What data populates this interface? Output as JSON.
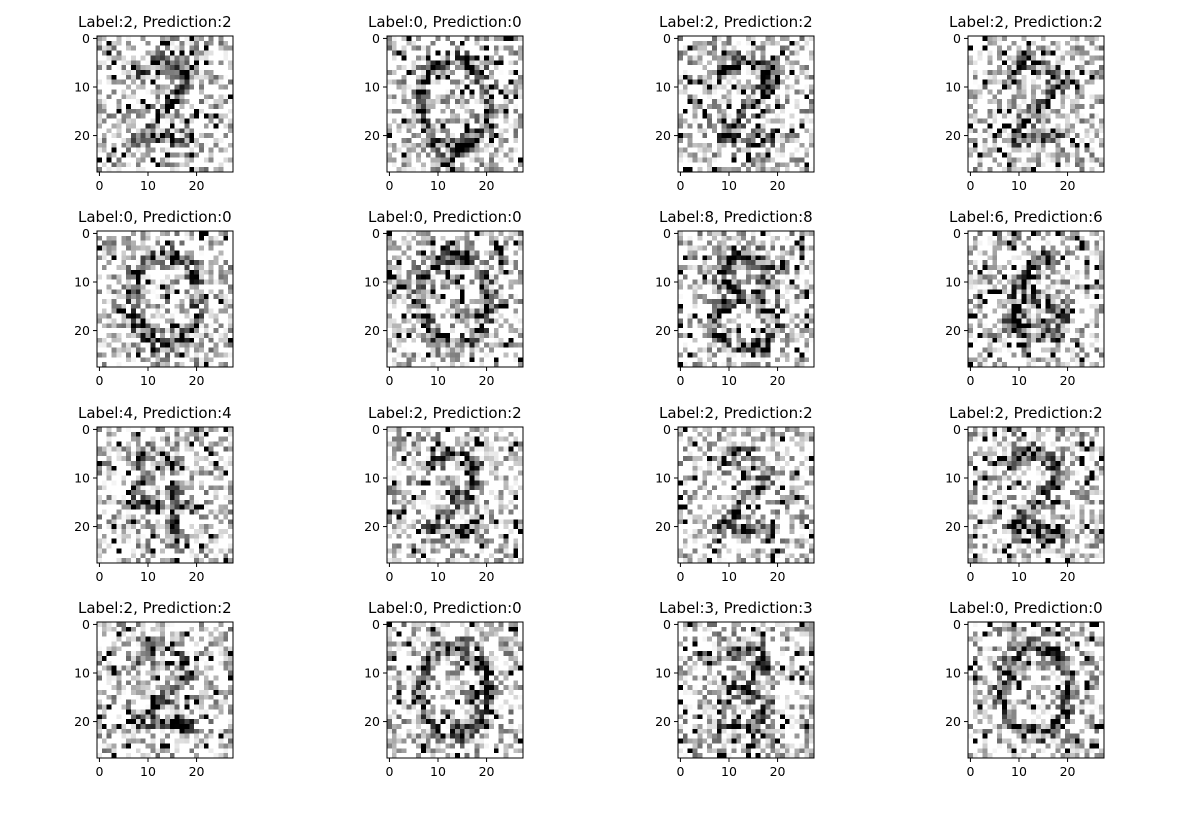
{
  "figure": {
    "background": "#ffffff",
    "cmap": "gray_r"
  },
  "chart_data": [
    {
      "type": "heatmap",
      "title": "Label:2, Prediction:2",
      "label": 2,
      "prediction": 2,
      "xlim": [
        -0.5,
        27.5
      ],
      "ylim": [
        27.5,
        -0.5
      ],
      "xticks": [
        0,
        10,
        20
      ],
      "yticks": [
        0,
        10,
        20
      ],
      "xticklabels": [
        "0",
        "10",
        "20"
      ],
      "yticklabels": [
        "0",
        "10",
        "20"
      ],
      "grid_size": [
        28,
        28
      ],
      "data_note": "noisy handwritten digit"
    },
    {
      "type": "heatmap",
      "title": "Label:0, Prediction:0",
      "label": 0,
      "prediction": 0,
      "xlim": [
        -0.5,
        27.5
      ],
      "ylim": [
        27.5,
        -0.5
      ],
      "xticks": [
        0,
        10,
        20
      ],
      "yticks": [
        0,
        10,
        20
      ],
      "xticklabels": [
        "0",
        "10",
        "20"
      ],
      "yticklabels": [
        "0",
        "10",
        "20"
      ],
      "grid_size": [
        28,
        28
      ]
    },
    {
      "type": "heatmap",
      "title": "Label:2, Prediction:2",
      "label": 2,
      "prediction": 2,
      "xlim": [
        -0.5,
        27.5
      ],
      "ylim": [
        27.5,
        -0.5
      ],
      "xticks": [
        0,
        10,
        20
      ],
      "yticks": [
        0,
        10,
        20
      ],
      "xticklabels": [
        "0",
        "10",
        "20"
      ],
      "yticklabels": [
        "0",
        "10",
        "20"
      ],
      "grid_size": [
        28,
        28
      ]
    },
    {
      "type": "heatmap",
      "title": "Label:2, Prediction:2",
      "label": 2,
      "prediction": 2,
      "xlim": [
        -0.5,
        27.5
      ],
      "ylim": [
        27.5,
        -0.5
      ],
      "xticks": [
        0,
        10,
        20
      ],
      "yticks": [
        0,
        10,
        20
      ],
      "xticklabels": [
        "0",
        "10",
        "20"
      ],
      "yticklabels": [
        "0",
        "10",
        "20"
      ],
      "grid_size": [
        28,
        28
      ]
    },
    {
      "type": "heatmap",
      "title": "Label:0, Prediction:0",
      "label": 0,
      "prediction": 0,
      "xlim": [
        -0.5,
        27.5
      ],
      "ylim": [
        27.5,
        -0.5
      ],
      "xticks": [
        0,
        10,
        20
      ],
      "yticks": [
        0,
        10,
        20
      ],
      "xticklabels": [
        "0",
        "10",
        "20"
      ],
      "yticklabels": [
        "0",
        "10",
        "20"
      ],
      "grid_size": [
        28,
        28
      ]
    },
    {
      "type": "heatmap",
      "title": "Label:0, Prediction:0",
      "label": 0,
      "prediction": 0,
      "xlim": [
        -0.5,
        27.5
      ],
      "ylim": [
        27.5,
        -0.5
      ],
      "xticks": [
        0,
        10,
        20
      ],
      "yticks": [
        0,
        10,
        20
      ],
      "xticklabels": [
        "0",
        "10",
        "20"
      ],
      "yticklabels": [
        "0",
        "10",
        "20"
      ],
      "grid_size": [
        28,
        28
      ]
    },
    {
      "type": "heatmap",
      "title": "Label:8, Prediction:8",
      "label": 8,
      "prediction": 8,
      "xlim": [
        -0.5,
        27.5
      ],
      "ylim": [
        27.5,
        -0.5
      ],
      "xticks": [
        0,
        10,
        20
      ],
      "yticks": [
        0,
        10,
        20
      ],
      "xticklabels": [
        "0",
        "10",
        "20"
      ],
      "yticklabels": [
        "0",
        "10",
        "20"
      ],
      "grid_size": [
        28,
        28
      ]
    },
    {
      "type": "heatmap",
      "title": "Label:6, Prediction:6",
      "label": 6,
      "prediction": 6,
      "xlim": [
        -0.5,
        27.5
      ],
      "ylim": [
        27.5,
        -0.5
      ],
      "xticks": [
        0,
        10,
        20
      ],
      "yticks": [
        0,
        10,
        20
      ],
      "xticklabels": [
        "0",
        "10",
        "20"
      ],
      "yticklabels": [
        "0",
        "10",
        "20"
      ],
      "grid_size": [
        28,
        28
      ]
    },
    {
      "type": "heatmap",
      "title": "Label:4, Prediction:4",
      "label": 4,
      "prediction": 4,
      "xlim": [
        -0.5,
        27.5
      ],
      "ylim": [
        27.5,
        -0.5
      ],
      "xticks": [
        0,
        10,
        20
      ],
      "yticks": [
        0,
        10,
        20
      ],
      "xticklabels": [
        "0",
        "10",
        "20"
      ],
      "yticklabels": [
        "0",
        "10",
        "20"
      ],
      "grid_size": [
        28,
        28
      ]
    },
    {
      "type": "heatmap",
      "title": "Label:2, Prediction:2",
      "label": 2,
      "prediction": 2,
      "xlim": [
        -0.5,
        27.5
      ],
      "ylim": [
        27.5,
        -0.5
      ],
      "xticks": [
        0,
        10,
        20
      ],
      "yticks": [
        0,
        10,
        20
      ],
      "xticklabels": [
        "0",
        "10",
        "20"
      ],
      "yticklabels": [
        "0",
        "10",
        "20"
      ],
      "grid_size": [
        28,
        28
      ]
    },
    {
      "type": "heatmap",
      "title": "Label:2, Prediction:2",
      "label": 2,
      "prediction": 2,
      "xlim": [
        -0.5,
        27.5
      ],
      "ylim": [
        27.5,
        -0.5
      ],
      "xticks": [
        0,
        10,
        20
      ],
      "yticks": [
        0,
        10,
        20
      ],
      "xticklabels": [
        "0",
        "10",
        "20"
      ],
      "yticklabels": [
        "0",
        "10",
        "20"
      ],
      "grid_size": [
        28,
        28
      ]
    },
    {
      "type": "heatmap",
      "title": "Label:2, Prediction:2",
      "label": 2,
      "prediction": 2,
      "xlim": [
        -0.5,
        27.5
      ],
      "ylim": [
        27.5,
        -0.5
      ],
      "xticks": [
        0,
        10,
        20
      ],
      "yticks": [
        0,
        10,
        20
      ],
      "xticklabels": [
        "0",
        "10",
        "20"
      ],
      "yticklabels": [
        "0",
        "10",
        "20"
      ],
      "grid_size": [
        28,
        28
      ]
    },
    {
      "type": "heatmap",
      "title": "Label:2, Prediction:2",
      "label": 2,
      "prediction": 2,
      "xlim": [
        -0.5,
        27.5
      ],
      "ylim": [
        27.5,
        -0.5
      ],
      "xticks": [
        0,
        10,
        20
      ],
      "yticks": [
        0,
        10,
        20
      ],
      "xticklabels": [
        "0",
        "10",
        "20"
      ],
      "yticklabels": [
        "0",
        "10",
        "20"
      ],
      "grid_size": [
        28,
        28
      ]
    },
    {
      "type": "heatmap",
      "title": "Label:0, Prediction:0",
      "label": 0,
      "prediction": 0,
      "xlim": [
        -0.5,
        27.5
      ],
      "ylim": [
        27.5,
        -0.5
      ],
      "xticks": [
        0,
        10,
        20
      ],
      "yticks": [
        0,
        10,
        20
      ],
      "xticklabels": [
        "0",
        "10",
        "20"
      ],
      "yticklabels": [
        "0",
        "10",
        "20"
      ],
      "grid_size": [
        28,
        28
      ]
    },
    {
      "type": "heatmap",
      "title": "Label:3, Prediction:3",
      "label": 3,
      "prediction": 3,
      "xlim": [
        -0.5,
        27.5
      ],
      "ylim": [
        27.5,
        -0.5
      ],
      "xticks": [
        0,
        10,
        20
      ],
      "yticks": [
        0,
        10,
        20
      ],
      "xticklabels": [
        "0",
        "10",
        "20"
      ],
      "yticklabels": [
        "0",
        "10",
        "20"
      ],
      "grid_size": [
        28,
        28
      ]
    },
    {
      "type": "heatmap",
      "title": "Label:0, Prediction:0",
      "label": 0,
      "prediction": 0,
      "xlim": [
        -0.5,
        27.5
      ],
      "ylim": [
        27.5,
        -0.5
      ],
      "xticks": [
        0,
        10,
        20
      ],
      "yticks": [
        0,
        10,
        20
      ],
      "xticklabels": [
        "0",
        "10",
        "20"
      ],
      "yticklabels": [
        "0",
        "10",
        "20"
      ],
      "grid_size": [
        28,
        28
      ]
    }
  ]
}
